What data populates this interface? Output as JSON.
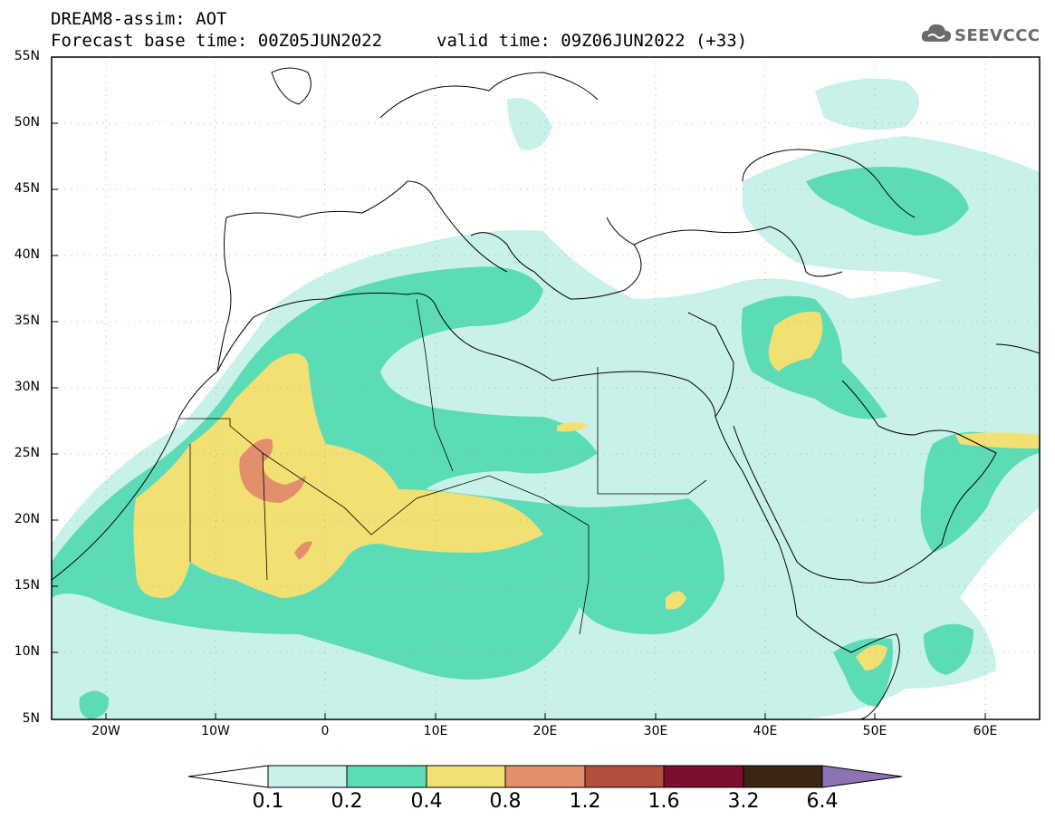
{
  "header": {
    "title_line1": "DREAM8-assim: AOT",
    "title_line2": "Forecast base time: 00Z05JUN2022",
    "valid_time": "valid time: 09Z06JUN2022 (+33)"
  },
  "logo": {
    "text": "SEEVCCC",
    "icon": "cloud-icon"
  },
  "map": {
    "lat_labels": [
      "55N",
      "50N",
      "45N",
      "40N",
      "35N",
      "30N",
      "25N",
      "20N",
      "15N",
      "10N",
      "5N"
    ],
    "lon_labels": [
      "20W",
      "10W",
      "0",
      "10E",
      "20E",
      "30E",
      "40E",
      "50E",
      "60E"
    ],
    "extent": {
      "lon": [
        -25,
        65
      ],
      "lat": [
        5,
        55
      ]
    },
    "grid": "dotted"
  },
  "colorbar": {
    "levels": [
      "0.1",
      "0.2",
      "0.4",
      "0.8",
      "1.2",
      "1.6",
      "3.2",
      "6.4"
    ],
    "colors": [
      "#c8f1ea",
      "#5cdcb6",
      "#f2e072",
      "#e48f6c",
      "#b2503e",
      "#7c0f2e",
      "#3b2514",
      "#8e73b4"
    ]
  }
}
